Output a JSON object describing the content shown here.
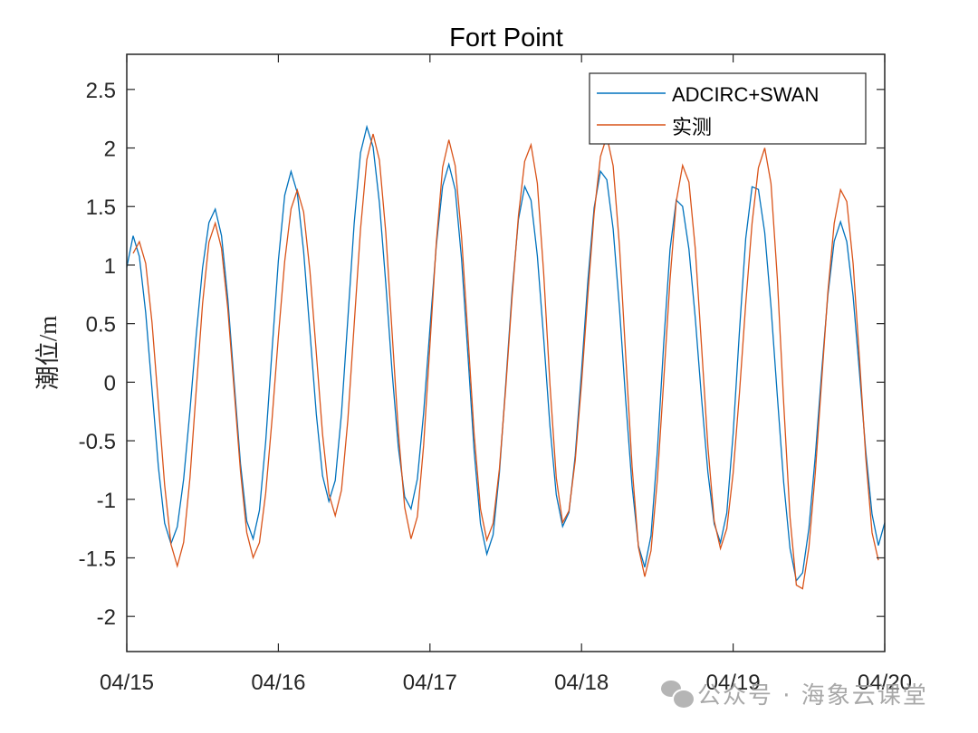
{
  "chart_data": {
    "type": "line",
    "title": "Fort Point",
    "xlabel": "",
    "ylabel": "潮位/m",
    "x_tick_labels": [
      "04/15",
      "04/16",
      "04/17",
      "04/18",
      "04/19",
      "04/20"
    ],
    "x_range_hours": [
      0,
      120
    ],
    "y_ticks": [
      -2,
      -1.5,
      -1,
      -0.5,
      0,
      0.5,
      1,
      1.5,
      2,
      2.5
    ],
    "y_tick_labels": [
      "-2",
      "-1.5",
      "-1",
      "-0.5",
      "0",
      "0.5",
      "1",
      "1.5",
      "2",
      "2.5"
    ],
    "ylim": [
      -2.3,
      2.8
    ],
    "grid": false,
    "legend_position": "northeast",
    "series": [
      {
        "name": "ADCIRC+SWAN",
        "color": "#0072BD",
        "extrema_hour_value": [
          [
            0,
            0.98
          ],
          [
            1.0,
            1.25
          ],
          [
            7.0,
            -1.38
          ],
          [
            13.9,
            1.48
          ],
          [
            19.9,
            -1.34
          ],
          [
            26.0,
            1.8
          ],
          [
            32.1,
            -1.02
          ],
          [
            38.0,
            2.18
          ],
          [
            44.8,
            -1.09
          ],
          [
            51.0,
            1.86
          ],
          [
            57.1,
            -1.47
          ],
          [
            63.2,
            1.68
          ],
          [
            69.2,
            -1.24
          ],
          [
            75.3,
            1.82
          ],
          [
            82.0,
            -1.58
          ],
          [
            87.3,
            1.58
          ],
          [
            94.0,
            -1.37
          ],
          [
            99.4,
            1.71
          ],
          [
            106.3,
            -1.71
          ],
          [
            113.0,
            1.37
          ],
          [
            119.3,
            -1.41
          ],
          [
            120,
            -1.2
          ]
        ]
      },
      {
        "name": "实测",
        "color": "#D95319",
        "extrema_hour_value": [
          [
            1.0,
            1.1
          ],
          [
            2.0,
            1.2
          ],
          [
            8.0,
            -1.57
          ],
          [
            13.9,
            1.36
          ],
          [
            20.1,
            -1.5
          ],
          [
            27.0,
            1.64
          ],
          [
            33.0,
            -1.14
          ],
          [
            39.0,
            2.12
          ],
          [
            45.1,
            -1.34
          ],
          [
            51.0,
            2.07
          ],
          [
            57.1,
            -1.35
          ],
          [
            63.9,
            2.03
          ],
          [
            69.2,
            -1.21
          ],
          [
            76.0,
            2.1
          ],
          [
            82.0,
            -1.66
          ],
          [
            88.2,
            1.86
          ],
          [
            94.0,
            -1.42
          ],
          [
            101.0,
            2.0
          ],
          [
            106.5,
            -1.81
          ],
          [
            113.3,
            1.66
          ],
          [
            119.0,
            -1.52
          ]
        ]
      }
    ]
  },
  "legend": {
    "items": [
      {
        "label": "ADCIRC+SWAN",
        "color": "#0072BD"
      },
      {
        "label": "实测",
        "color": "#D95319"
      }
    ]
  },
  "watermark": {
    "text": "公众号 · 海象云课堂"
  }
}
